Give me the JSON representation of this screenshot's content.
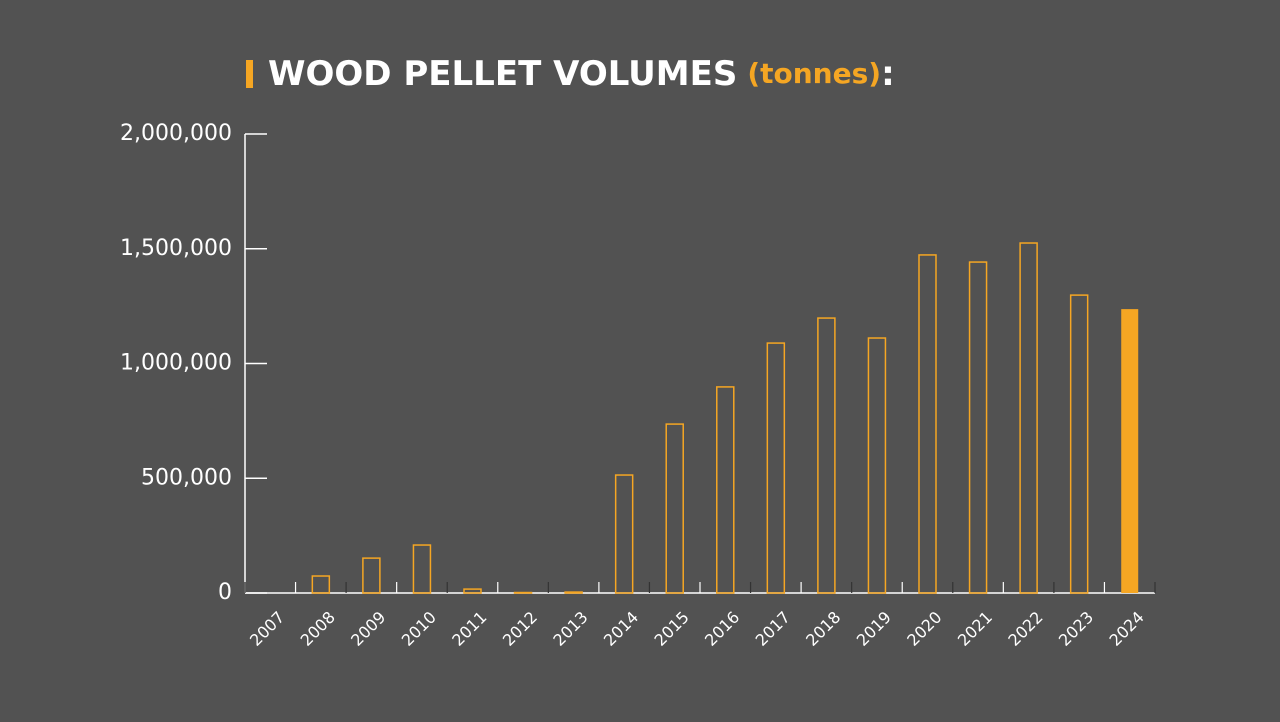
{
  "chart_data": {
    "type": "bar",
    "title": "WOOD PELLET VOLUMES",
    "title_unit": "(tonnes)",
    "title_suffix": ":",
    "categories": [
      "2007",
      "2008",
      "2009",
      "2010",
      "2011",
      "2012",
      "2013",
      "2014",
      "2015",
      "2016",
      "2017",
      "2018",
      "2019",
      "2020",
      "2021",
      "2022",
      "2023",
      "2024"
    ],
    "values": [
      0,
      74000,
      152000,
      209000,
      17000,
      2000,
      4000,
      514000,
      736000,
      898000,
      1089000,
      1198000,
      1111000,
      1473000,
      1442000,
      1525000,
      1298000,
      1237000
    ],
    "bar_styles": [
      "outline",
      "outline",
      "outline",
      "outline",
      "outline",
      "outline",
      "outline",
      "outline",
      "outline",
      "outline",
      "outline",
      "outline",
      "outline",
      "outline",
      "outline",
      "outline",
      "outline",
      "filled"
    ],
    "color": "#f5a623",
    "ylim": [
      0,
      2000000
    ],
    "yticks": [
      0,
      {
        "value": 500000,
        "label": "500,000"
      },
      {
        "value": 1000000,
        "label": "1,000,000"
      },
      {
        "value": 1500000,
        "label": "1,500,000"
      },
      {
        "value": 2000000,
        "label": "2,000,000"
      }
    ]
  }
}
